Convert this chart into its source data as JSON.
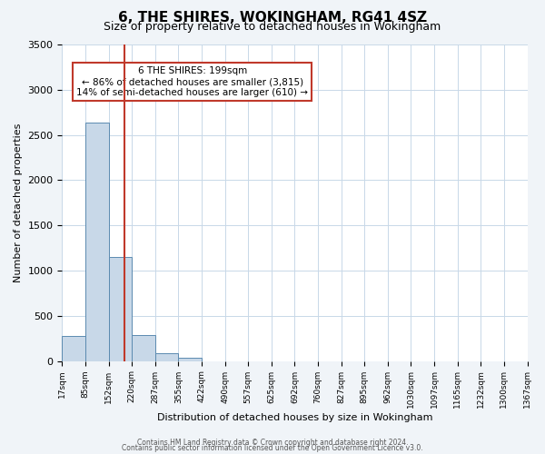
{
  "title": "6, THE SHIRES, WOKINGHAM, RG41 4SZ",
  "subtitle": "Size of property relative to detached houses in Wokingham",
  "xlabel": "Distribution of detached houses by size in Wokingham",
  "ylabel": "Number of detached properties",
  "bin_labels": [
    "17sqm",
    "85sqm",
    "152sqm",
    "220sqm",
    "287sqm",
    "355sqm",
    "422sqm",
    "490sqm",
    "557sqm",
    "625sqm",
    "692sqm",
    "760sqm",
    "827sqm",
    "895sqm",
    "962sqm",
    "1030sqm",
    "1097sqm",
    "1165sqm",
    "1232sqm",
    "1300sqm",
    "1367sqm"
  ],
  "bar_heights": [
    280,
    2640,
    1150,
    285,
    90,
    40,
    0,
    0,
    0,
    0,
    0,
    0,
    0,
    0,
    0,
    0,
    0,
    0,
    0,
    0
  ],
  "bar_color": "#c8d8e8",
  "bar_edge_color": "#5b8ab0",
  "vline_x": 199,
  "vline_color": "#c0392b",
  "annotation_title": "6 THE SHIRES: 199sqm",
  "annotation_line1": "← 86% of detached houses are smaller (3,815)",
  "annotation_line2": "14% of semi-detached houses are larger (610) →",
  "annotation_box_color": "#c0392b",
  "ylim": [
    0,
    3500
  ],
  "yticks": [
    0,
    500,
    1000,
    1500,
    2000,
    2500,
    3000,
    3500
  ],
  "footer1": "Contains HM Land Registry data © Crown copyright and database right 2024.",
  "footer2": "Contains public sector information licensed under the Open Government Licence v3.0.",
  "bg_color": "#f0f4f8",
  "plot_bg_color": "#ffffff",
  "grid_color": "#c8d8e8"
}
